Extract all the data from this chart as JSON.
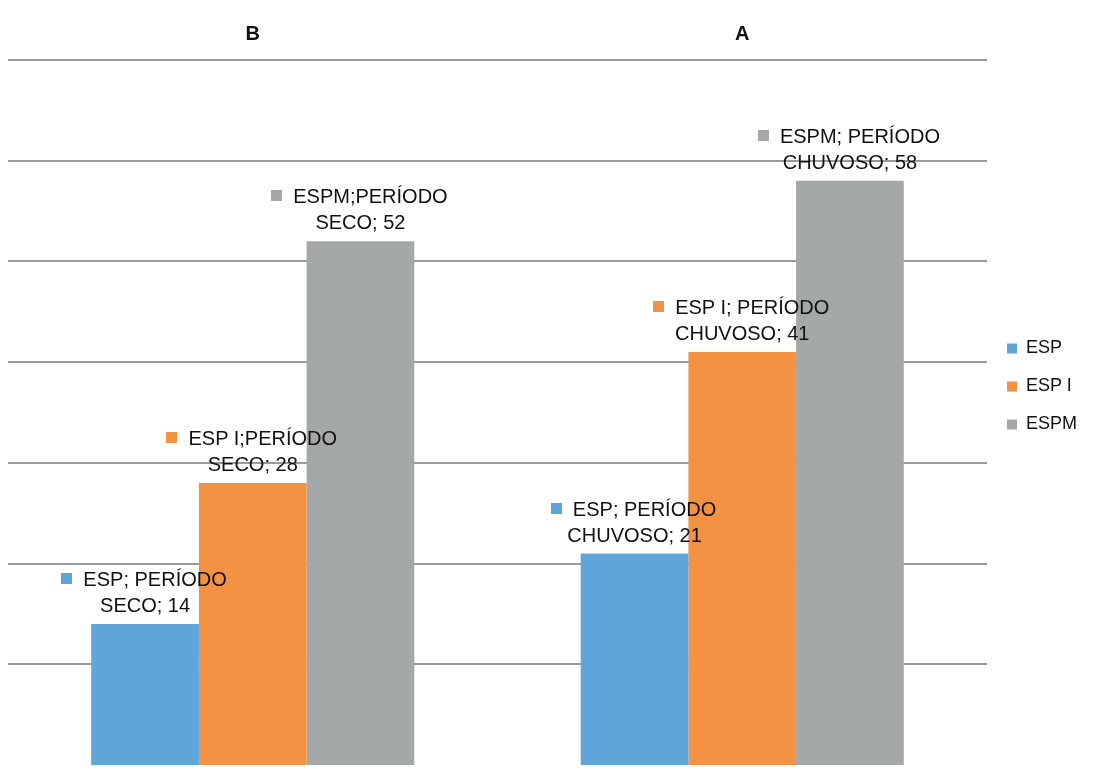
{
  "chart_data": {
    "type": "bar",
    "categories": [
      "B",
      "A"
    ],
    "series": [
      {
        "name": "ESP",
        "color": "#5fa5d9",
        "values": [
          14,
          21
        ],
        "value_labels": [
          "ESP; PERÍODO SECO; 14",
          "ESP; PERÍODO CHUVOSO; 21"
        ]
      },
      {
        "name": "ESP I",
        "color": "#f39243",
        "values": [
          28,
          41
        ],
        "value_labels": [
          "ESP I;PERÍODO SECO; 28",
          "ESP I; PERÍODO CHUVOSO; 41"
        ]
      },
      {
        "name": "ESPM",
        "color": "#a5a8a8",
        "values": [
          52,
          58
        ],
        "value_labels": [
          "ESPM;PERÍODO SECO; 52",
          "ESPM; PERÍODO CHUVOSO; 58"
        ]
      }
    ],
    "ylim": [
      0,
      70
    ],
    "yticks": [
      {
        "value": 10,
        "label": null
      },
      {
        "value": 20,
        "label": null
      },
      {
        "value": 30,
        "label": null
      },
      {
        "value": 40,
        "label": null
      },
      {
        "value": 50,
        "label": null
      },
      {
        "value": 60,
        "label": null
      },
      {
        "value": 70,
        "label": null
      }
    ],
    "grid": "y",
    "tick_labels": "x",
    "legend": "right"
  }
}
